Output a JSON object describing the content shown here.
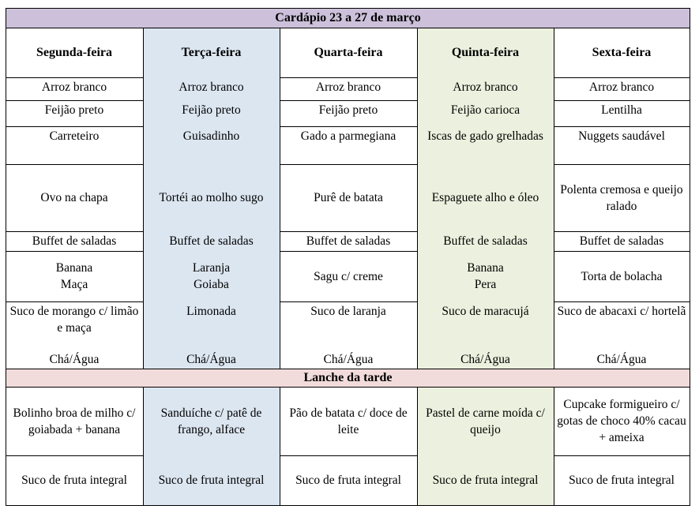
{
  "title": "Cardápio 23 a 27 de março",
  "colors": {
    "title_bg": "#ccc0da",
    "tuesday_bg": "#dce6f1",
    "thursday_bg": "#ebf1de",
    "snack_bg": "#f2dcdb"
  },
  "days": [
    "Segunda-feira",
    "Terça-feira",
    "Quarta-feira",
    "Quinta-feira",
    "Sexta-feira"
  ],
  "lunch": {
    "rice": [
      "Arroz branco",
      "Arroz branco",
      "Arroz branco",
      "Arroz branco",
      "Arroz branco"
    ],
    "beans": [
      "Feijão preto",
      "Feijão preto",
      "Feijão preto",
      "Feijão carioca",
      "Lentilha"
    ],
    "meat": [
      "Carreteiro",
      "Guisadinho",
      "Gado a parmegiana",
      "Iscas de gado grelhadas",
      "Nuggets saudável"
    ],
    "side": [
      "Ovo na chapa",
      "Tortéi ao molho sugo",
      "Purê de batata",
      "Espaguete alho e óleo",
      "Polenta cremosa e queijo ralado"
    ],
    "salad": [
      "Buffet de saladas",
      "Buffet de saladas",
      "Buffet de saladas",
      "Buffet de saladas",
      "Buffet de saladas"
    ],
    "dessert": [
      "Banana\nMaça",
      "Laranja\nGoiaba",
      "Sagu c/ creme",
      "Banana\nPera",
      "Torta de bolacha"
    ],
    "juice": [
      "Suco de morango c/ limão e maça",
      "Limonada",
      "Suco de laranja",
      "Suco de maracujá",
      "Suco de abacaxi c/ hortelã"
    ],
    "drink": [
      "Chá/Água",
      "Chá/Água",
      "Chá/Água",
      "Chá/Água",
      "Chá/Água"
    ]
  },
  "snack_title": "Lanche da tarde",
  "snack": {
    "food": [
      "Bolinho broa de milho c/ goiabada + banana",
      "Sanduíche c/ patê de frango, alface",
      "Pão de batata c/ doce de leite",
      "Pastel de carne moída c/ queijo",
      "Cupcake formigueiro c/ gotas de choco 40% cacau + ameixa"
    ],
    "juice": [
      "Suco de fruta integral",
      "Suco de fruta integral",
      "Suco de fruta integral",
      "Suco de fruta integral",
      "Suco de fruta integral"
    ]
  }
}
